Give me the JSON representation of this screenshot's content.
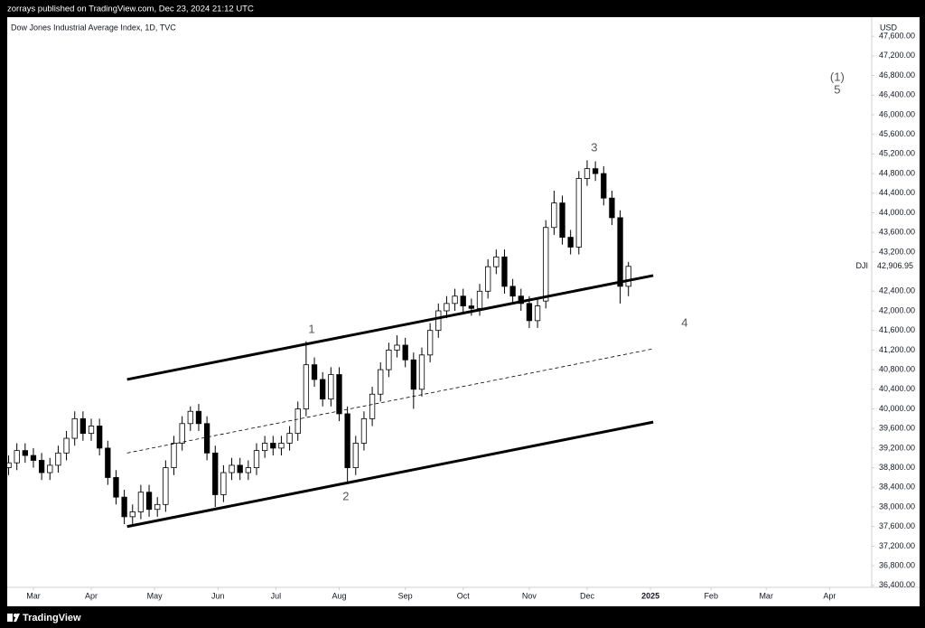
{
  "header": {
    "published": "zorrays published on TradingView.com, Dec 23, 2024 21:12 UTC"
  },
  "footer": {
    "brand": "TradingView"
  },
  "chart_data": {
    "type": "candlestick",
    "title": "Dow Jones Industrial Average Index, 1D, TVC",
    "currency": "USD",
    "symbol": "DJI",
    "last_price": {
      "value": 42906.95,
      "label": "42,906.95"
    },
    "up_color": "#ffffff",
    "down_color": "#000000",
    "outline_color": "#000000",
    "grid": false,
    "xlim": [
      -9.5,
      304.3
    ],
    "ylim": [
      36360,
      47990
    ],
    "xticks": [
      {
        "value": 0,
        "label": "Mar"
      },
      {
        "value": 21,
        "label": "Apr"
      },
      {
        "value": 44,
        "label": "May"
      },
      {
        "value": 67,
        "label": "Jun"
      },
      {
        "value": 88,
        "label": "Jul"
      },
      {
        "value": 111,
        "label": "Aug"
      },
      {
        "value": 135,
        "label": "Sep"
      },
      {
        "value": 156,
        "label": "Oct"
      },
      {
        "value": 180,
        "label": "Nov"
      },
      {
        "value": 201,
        "label": "Dec"
      },
      {
        "value": 224,
        "label": "2025"
      },
      {
        "value": 246,
        "label": "Feb"
      },
      {
        "value": 266,
        "label": "Mar"
      },
      {
        "value": 289,
        "label": "Apr"
      }
    ],
    "yticks": [
      {
        "value": 36400,
        "label": "36,400.00"
      },
      {
        "value": 36800,
        "label": "36,800.00"
      },
      {
        "value": 37200,
        "label": "37,200.00"
      },
      {
        "value": 37600,
        "label": "37,600.00"
      },
      {
        "value": 38000,
        "label": "38,000.00"
      },
      {
        "value": 38400,
        "label": "38,400.00"
      },
      {
        "value": 38800,
        "label": "38,800.00"
      },
      {
        "value": 39200,
        "label": "39,200.00"
      },
      {
        "value": 39600,
        "label": "39,600.00"
      },
      {
        "value": 40000,
        "label": "40,000.00"
      },
      {
        "value": 40400,
        "label": "40,400.00"
      },
      {
        "value": 40800,
        "label": "40,800.00"
      },
      {
        "value": 41200,
        "label": "41,200.00"
      },
      {
        "value": 41600,
        "label": "41,600.00"
      },
      {
        "value": 42000,
        "label": "42,000.00"
      },
      {
        "value": 42400,
        "label": "42,400.00"
      },
      {
        "value": 43200,
        "label": "43,200.00"
      },
      {
        "value": 43600,
        "label": "43,600.00"
      },
      {
        "value": 44000,
        "label": "44,000.00"
      },
      {
        "value": 44400,
        "label": "44,400.00"
      },
      {
        "value": 44800,
        "label": "44,800.00"
      },
      {
        "value": 45200,
        "label": "45,200.00"
      },
      {
        "value": 45600,
        "label": "45,600.00"
      },
      {
        "value": 46000,
        "label": "46,000.00"
      },
      {
        "value": 46400,
        "label": "46,400.00"
      },
      {
        "value": 46800,
        "label": "46,800.00"
      },
      {
        "value": 47200,
        "label": "47,200.00"
      },
      {
        "value": 47600,
        "label": "47,600.00"
      }
    ],
    "x": [
      -9,
      -6,
      -3,
      0,
      3,
      6,
      9,
      12,
      15,
      18,
      21,
      24,
      27,
      30,
      33,
      36,
      39,
      42,
      45,
      48,
      51,
      54,
      57,
      60,
      63,
      66,
      69,
      72,
      75,
      78,
      81,
      84,
      87,
      90,
      93,
      96,
      99,
      102,
      105,
      108,
      111,
      114,
      117,
      120,
      123,
      126,
      129,
      132,
      135,
      138,
      141,
      144,
      147,
      150,
      153,
      156,
      159,
      162,
      165,
      168,
      171,
      174,
      177,
      180,
      183,
      186,
      189,
      192,
      195,
      198,
      201,
      204,
      207,
      210,
      213,
      216
    ],
    "open": [
      38800,
      38900,
      39150,
      39050,
      38950,
      38700,
      38850,
      39100,
      39400,
      39800,
      39500,
      39650,
      39200,
      38600,
      38200,
      37800,
      37900,
      38300,
      37950,
      38050,
      38800,
      39300,
      39700,
      39950,
      39700,
      39100,
      38250,
      38700,
      38850,
      38700,
      38800,
      39150,
      39300,
      39200,
      39300,
      39500,
      40000,
      40900,
      40600,
      40200,
      40700,
      39900,
      38800,
      39300,
      39800,
      40300,
      40800,
      41200,
      41300,
      41000,
      40400,
      41100,
      41600,
      42000,
      42150,
      42300,
      42100,
      42050,
      42400,
      42900,
      43100,
      42500,
      42300,
      42150,
      41800,
      42200,
      43700,
      44200,
      43500,
      43300,
      44700,
      44900,
      44800,
      44300,
      43900,
      42500
    ],
    "high": [
      39050,
      39300,
      39300,
      39200,
      39100,
      39000,
      39250,
      39550,
      39950,
      39950,
      39800,
      39800,
      39350,
      38750,
      38350,
      38050,
      38450,
      38450,
      38200,
      38950,
      39450,
      39850,
      40050,
      40100,
      39850,
      39250,
      38850,
      39000,
      39000,
      38950,
      39300,
      39450,
      39450,
      39450,
      39650,
      40150,
      41380,
      41050,
      40750,
      40850,
      40850,
      40050,
      39450,
      39950,
      40450,
      40950,
      41350,
      41500,
      41450,
      41150,
      41250,
      41750,
      42150,
      42300,
      42450,
      42450,
      42250,
      42550,
      43050,
      43250,
      43250,
      42650,
      42450,
      42300,
      42250,
      43850,
      44450,
      44350,
      43650,
      44850,
      45070,
      45050,
      44950,
      44450,
      44050,
      43000
    ],
    "low": [
      38650,
      38750,
      38900,
      38800,
      38550,
      38550,
      38700,
      38950,
      39250,
      39350,
      39350,
      39050,
      38450,
      38050,
      37650,
      37650,
      37750,
      37800,
      37800,
      37900,
      38650,
      39150,
      39550,
      39550,
      38950,
      38000,
      38100,
      38550,
      38550,
      38550,
      38650,
      39000,
      39050,
      39050,
      39150,
      39350,
      39850,
      40450,
      40050,
      40050,
      39750,
      38500,
      38650,
      39150,
      39650,
      40150,
      40650,
      41050,
      40850,
      40000,
      40250,
      40950,
      41450,
      41850,
      42000,
      41950,
      41900,
      41900,
      42250,
      42750,
      42350,
      42150,
      42000,
      41650,
      41650,
      42050,
      43550,
      43350,
      43150,
      43150,
      44550,
      44650,
      44150,
      43750,
      42150,
      42300
    ],
    "close": [
      38900,
      39150,
      39050,
      38950,
      38700,
      38850,
      39100,
      39400,
      39800,
      39500,
      39650,
      39200,
      38600,
      38200,
      37800,
      37900,
      38300,
      37950,
      38050,
      38800,
      39300,
      39700,
      39950,
      39700,
      39100,
      38250,
      38700,
      38850,
      38700,
      38800,
      39150,
      39300,
      39200,
      39300,
      39500,
      40000,
      40900,
      40600,
      40200,
      40700,
      39900,
      38800,
      39300,
      39800,
      40300,
      40800,
      41200,
      41300,
      41000,
      40400,
      41100,
      41600,
      42000,
      42150,
      42300,
      42100,
      42050,
      42400,
      42900,
      43100,
      42500,
      42300,
      42150,
      41800,
      42100,
      43700,
      44200,
      43500,
      43300,
      44700,
      44900,
      44800,
      44300,
      43900,
      42500,
      42906.95
    ],
    "trendlines": [
      {
        "style": "solid",
        "x": [
          34,
          225
        ],
        "values": [
          40600,
          42720
        ]
      },
      {
        "style": "solid",
        "x": [
          34,
          225
        ],
        "values": [
          37600,
          39730
        ]
      },
      {
        "style": "dashed",
        "x": [
          34,
          225
        ],
        "values": [
          39100,
          41225
        ]
      }
    ],
    "annotations": [
      {
        "text": "1",
        "x": 101,
        "y": 41615
      },
      {
        "text": "2",
        "x": 113.4,
        "y": 38205
      },
      {
        "text": "3",
        "x": 203.6,
        "y": 45320
      },
      {
        "text": "4",
        "x": 236.4,
        "y": 41744
      },
      {
        "text": "(1)",
        "x": 291.8,
        "y": 46758
      },
      {
        "text": "5",
        "x": 291.8,
        "y": 46500
      }
    ]
  }
}
